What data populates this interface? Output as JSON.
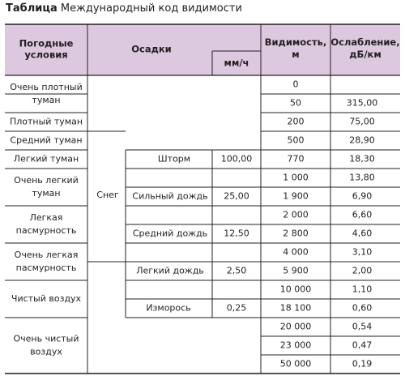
{
  "title": {
    "prefix": "Таблица",
    "text": "Международный код видимости"
  },
  "headers": {
    "weather": [
      "Погодные",
      "условия"
    ],
    "precip": "Осадки",
    "mmh": "мм/ч",
    "visibility": [
      "Видимость,",
      "м"
    ],
    "attenuation": [
      "Ослабление,",
      "дБ/км"
    ]
  },
  "weather": [
    [
      "Очень плотный",
      "туман"
    ],
    [
      "Плотный туман"
    ],
    [
      "Средний туман"
    ],
    [
      "Легкий туман"
    ],
    [
      "Очень легкий",
      "туман"
    ],
    [
      "Легкая",
      "пасмурность"
    ],
    [
      "Очень легкая",
      "пасмурность"
    ],
    [
      "Чистый воздух"
    ],
    [
      "Очень чистый",
      "воздух"
    ]
  ],
  "precip": {
    "snow": "Снег",
    "items": [
      {
        "name": "Шторм",
        "mmh": "100,00"
      },
      {
        "name": "Сильный дождь",
        "mmh": "25,00"
      },
      {
        "name": "Средний дождь",
        "mmh": "12,50"
      },
      {
        "name": "Легкий дождь",
        "mmh": "2,50"
      },
      {
        "name": "Изморось",
        "mmh": "0,25"
      }
    ]
  },
  "rows": [
    {
      "visibility": "0",
      "attenuation": ""
    },
    {
      "visibility": "50",
      "attenuation": "315,00"
    },
    {
      "visibility": "200",
      "attenuation": "75,00"
    },
    {
      "visibility": "500",
      "attenuation": "28,90"
    },
    {
      "visibility": "770",
      "attenuation": "18,30"
    },
    {
      "visibility": "1 000",
      "attenuation": "13,80"
    },
    {
      "visibility": "1 900",
      "attenuation": "6,90"
    },
    {
      "visibility": "2 000",
      "attenuation": "6,60"
    },
    {
      "visibility": "2 800",
      "attenuation": "4,60"
    },
    {
      "visibility": "4 000",
      "attenuation": "3,10"
    },
    {
      "visibility": "5 900",
      "attenuation": "2,00"
    },
    {
      "visibility": "10 000",
      "attenuation": "1,10"
    },
    {
      "visibility": "18 100",
      "attenuation": "0,60"
    },
    {
      "visibility": "20 000",
      "attenuation": "0,54"
    },
    {
      "visibility": "23 000",
      "attenuation": "0,47"
    },
    {
      "visibility": "50 000",
      "attenuation": "0,19"
    }
  ],
  "colors": {
    "header_bg": "#ddc9df",
    "line": "#231f20",
    "text": "#231f20"
  }
}
